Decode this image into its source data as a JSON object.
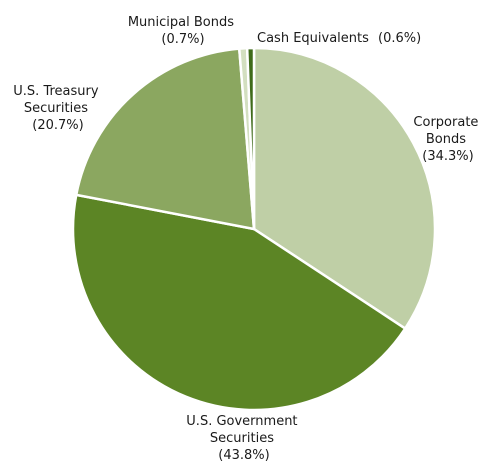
{
  "chart_data": {
    "type": "pie",
    "slices": [
      {
        "label_lines": [
          "Corporate",
          "Bonds"
        ],
        "value": 34.3,
        "value_label": "(34.3%)",
        "color": "#bfcfa6"
      },
      {
        "label_lines": [
          "U.S. Government",
          "Securities"
        ],
        "value": 43.8,
        "value_label": "(43.8%)",
        "color": "#5c8525"
      },
      {
        "label_lines": [
          "U.S. Treasury",
          "Securities"
        ],
        "value": 20.7,
        "value_label": "(20.7%)",
        "color": "#8ba760"
      },
      {
        "label_lines": [
          "Municipal Bonds"
        ],
        "value": 0.7,
        "value_label": "(0.7%)",
        "color": "#d3dfc0"
      },
      {
        "label_lines": [
          "Cash Equivalents"
        ],
        "value": 0.6,
        "value_label": "(0.6%)",
        "color": "#3f6b1a"
      }
    ],
    "start_angle": "12 o'clock",
    "direction": "clockwise",
    "slice_separator_color": "#ffffff"
  }
}
